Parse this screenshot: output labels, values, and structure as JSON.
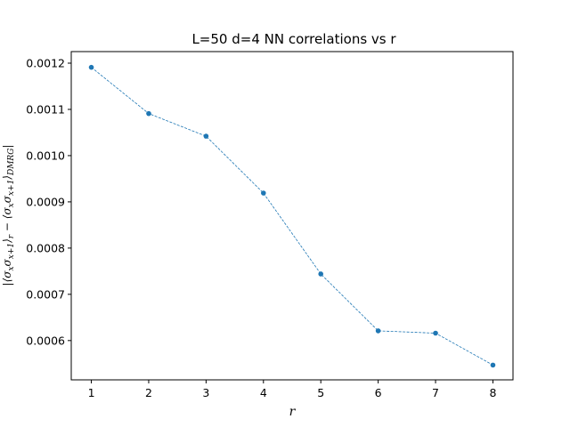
{
  "chart_data": {
    "type": "line",
    "title": "L=50 d=4 NN correlations vs r",
    "xlabel": "r",
    "ylabel": "|⟨σxσx+1⟩r − ⟨σxσx+1⟩DMRG|",
    "xlim": [
      0.65,
      8.35
    ],
    "ylim": [
      0.000515,
      0.001225
    ],
    "xticks": [
      1,
      2,
      3,
      4,
      5,
      6,
      7,
      8
    ],
    "yticks": [
      0.0006,
      0.0007,
      0.0008,
      0.0009,
      0.001,
      0.0011,
      0.0012
    ],
    "ytick_labels": [
      "0.0006",
      "0.0007",
      "0.0008",
      "0.0009",
      "0.0010",
      "0.0011",
      "0.0012"
    ],
    "grid": false,
    "color": "#1f77b4",
    "line_style": "dashed",
    "marker": "circle",
    "series": [
      {
        "x": [
          1,
          2,
          3,
          4,
          5,
          6,
          7,
          8
        ],
        "values": [
          0.001191,
          0.001091,
          0.001042,
          0.000919,
          0.000744,
          0.000621,
          0.000616,
          0.000547
        ]
      }
    ]
  }
}
